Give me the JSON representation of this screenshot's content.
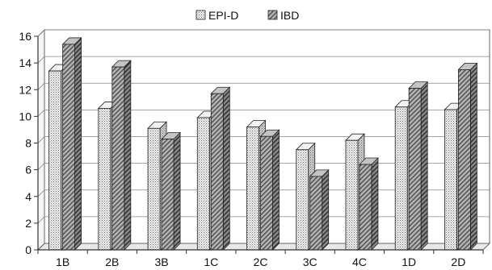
{
  "chart_data": {
    "type": "bar",
    "categories": [
      "1B",
      "2B",
      "3B",
      "1C",
      "2C",
      "3C",
      "4C",
      "1D",
      "2D"
    ],
    "series": [
      {
        "name": "EPI-D",
        "values": [
          13.4,
          10.6,
          9.1,
          9.9,
          9.2,
          7.5,
          8.2,
          10.7,
          10.5
        ],
        "color": "#e6e6e6",
        "pattern": "dots"
      },
      {
        "name": "IBD",
        "values": [
          15.4,
          13.7,
          8.3,
          11.7,
          8.5,
          5.5,
          6.4,
          12.1,
          13.5
        ],
        "color": "#9a9a9a",
        "pattern": "diagonal"
      }
    ],
    "yticks": [
      0,
      2,
      4,
      6,
      8,
      10,
      12,
      14,
      16
    ],
    "ylim": [
      0,
      16
    ],
    "grid": true,
    "legend_position": "top-center"
  }
}
